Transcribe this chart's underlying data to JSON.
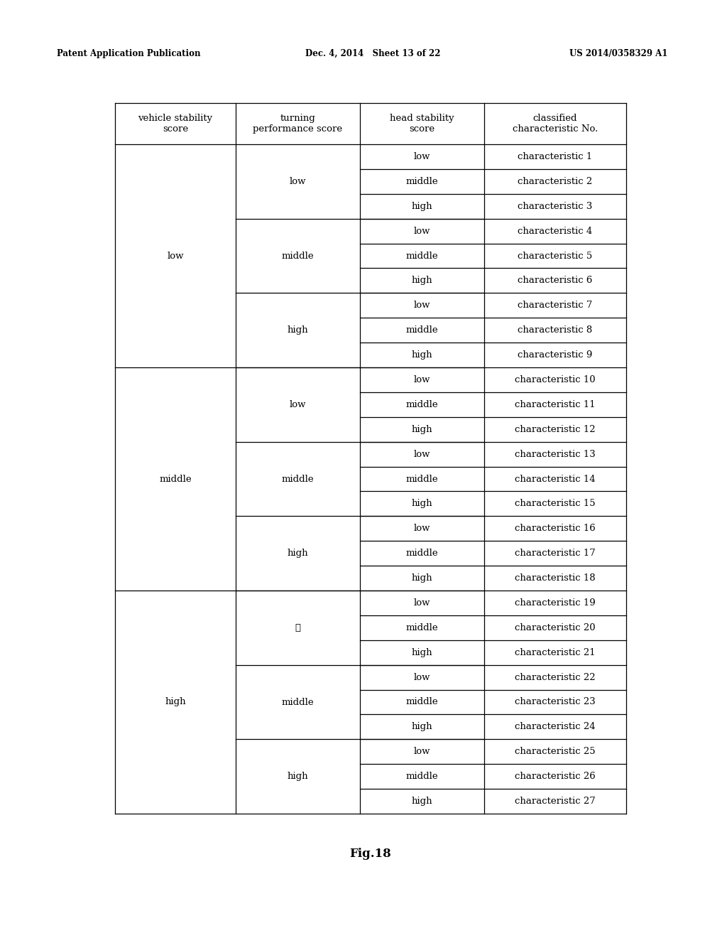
{
  "header_text": [
    "vehicle stability\nscore",
    "turning\nperformance score",
    "head stability\nscore",
    "classified\ncharacteristic No."
  ],
  "col1_groups": [
    {
      "label": "low",
      "rows": 9
    },
    {
      "label": "middle",
      "rows": 9
    },
    {
      "label": "high",
      "rows": 9
    }
  ],
  "col2_groups": [
    {
      "label": "low",
      "rows": 3
    },
    {
      "label": "middle",
      "rows": 3
    },
    {
      "label": "high",
      "rows": 3
    },
    {
      "label": "low",
      "rows": 3
    },
    {
      "label": "middle",
      "rows": 3
    },
    {
      "label": "high",
      "rows": 3
    },
    {
      "label": "低",
      "rows": 3
    },
    {
      "label": "middle",
      "rows": 3
    },
    {
      "label": "high",
      "rows": 3
    }
  ],
  "col3_values": [
    "low",
    "middle",
    "high",
    "low",
    "middle",
    "high",
    "low",
    "middle",
    "high",
    "low",
    "middle",
    "high",
    "low",
    "middle",
    "high",
    "low",
    "middle",
    "high",
    "low",
    "middle",
    "high",
    "low",
    "middle",
    "high",
    "low",
    "middle",
    "high"
  ],
  "col4_values": [
    "characteristic 1",
    "characteristic 2",
    "characteristic 3",
    "characteristic 4",
    "characteristic 5",
    "characteristic 6",
    "characteristic 7",
    "characteristic 8",
    "characteristic 9",
    "characteristic 10",
    "characteristic 11",
    "characteristic 12",
    "characteristic 13",
    "characteristic 14",
    "characteristic 15",
    "characteristic 16",
    "characteristic 17",
    "characteristic 18",
    "characteristic 19",
    "characteristic 20",
    "characteristic 21",
    "characteristic 22",
    "characteristic 23",
    "characteristic 24",
    "characteristic 25",
    "characteristic 26",
    "characteristic 27"
  ],
  "patent_header_left": "Patent Application Publication",
  "patent_header_mid": "Dec. 4, 2014   Sheet 13 of 22",
  "patent_header_right": "US 2014/0358329 A1",
  "figure_label": "Fig.18",
  "background_color": "#ffffff",
  "line_color": "#000000",
  "text_color": "#000000",
  "font_size": 9.5,
  "header_font_size": 9.5
}
